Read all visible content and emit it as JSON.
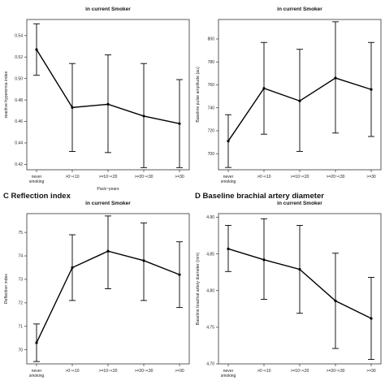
{
  "chart_data": [
    {
      "type": "line",
      "heading": "",
      "title": "in current Smoker",
      "categories": [
        "never\nsmoking",
        ">0~<10",
        ">=10~<20",
        ">=20~<30",
        ">=30"
      ],
      "series": [
        {
          "values": [
            0.527,
            0.473,
            0.476,
            0.465,
            0.458
          ],
          "lower": [
            0.503,
            0.432,
            0.431,
            0.417,
            0.417
          ],
          "upper": [
            0.551,
            0.514,
            0.522,
            0.514,
            0.499
          ]
        }
      ],
      "xlabel": "Pack~years",
      "ylabel": "reactive hyperemia index",
      "ylim": [
        0.415,
        0.555
      ],
      "yticks": [
        0.42,
        0.44,
        0.46,
        0.48,
        0.5,
        0.52,
        0.54
      ],
      "ytick_labels": [
        "0.42",
        "0.44",
        "0.46",
        "0.48",
        "0.50",
        "0.52",
        "0.54"
      ],
      "grid": false
    },
    {
      "type": "line",
      "heading": "",
      "title": "in current Smoker",
      "categories": [
        "never\nsmoking",
        ">0~<10",
        ">=10~<20",
        ">=20~<30",
        ">=30"
      ],
      "series": [
        {
          "values": [
            711,
            757,
            746,
            766,
            756
          ],
          "lower": [
            688,
            717,
            702,
            718,
            715
          ],
          "upper": [
            734,
            797,
            791,
            815,
            797
          ]
        }
      ],
      "xlabel": "",
      "ylabel": "Baseline pulse amplitude (au)",
      "ylim": [
        686,
        817
      ],
      "yticks": [
        700,
        720,
        740,
        760,
        780,
        800
      ],
      "ytick_labels": [
        "700",
        "720",
        "740",
        "760",
        "780",
        "800"
      ],
      "grid": false
    },
    {
      "type": "line",
      "heading": "C  Reflection index",
      "title": "in current Smoker",
      "categories": [
        "never\nsmoking",
        ">0~<10",
        ">=10~<20",
        ">=20~<30",
        ">=30"
      ],
      "series": [
        {
          "values": [
            70.3,
            73.5,
            74.2,
            73.8,
            73.2
          ],
          "lower": [
            69.5,
            72.1,
            72.6,
            72.1,
            71.8
          ],
          "upper": [
            71.1,
            74.9,
            75.7,
            75.4,
            74.6
          ]
        }
      ],
      "xlabel": "",
      "ylabel": "Reflection index",
      "ylim": [
        69.4,
        75.8
      ],
      "yticks": [
        70,
        71,
        72,
        73,
        74,
        75
      ],
      "ytick_labels": [
        "70",
        "71",
        "72",
        "73",
        "74",
        "75"
      ],
      "grid": false
    },
    {
      "type": "line",
      "heading": "D  Baseline brachial artery diameter",
      "title": "in current Smoker",
      "categories": [
        "never\nsmoking",
        ">0~<10",
        ">=10~<20",
        ">=20~<30",
        ">=30"
      ],
      "series": [
        {
          "values": [
            4.857,
            4.842,
            4.829,
            4.786,
            4.762
          ],
          "lower": [
            4.826,
            4.788,
            4.769,
            4.721,
            4.706
          ],
          "upper": [
            4.889,
            4.898,
            4.889,
            4.851,
            4.818
          ]
        }
      ],
      "xlabel": "",
      "ylabel": "Baseline brachial artery diameter (mm)",
      "ylim": [
        4.7,
        4.905
      ],
      "yticks": [
        4.7,
        4.75,
        4.8,
        4.85,
        4.9
      ],
      "ytick_labels": [
        "4.70",
        "4.75",
        "4.80",
        "4.85",
        "4.90"
      ],
      "grid": false
    }
  ]
}
